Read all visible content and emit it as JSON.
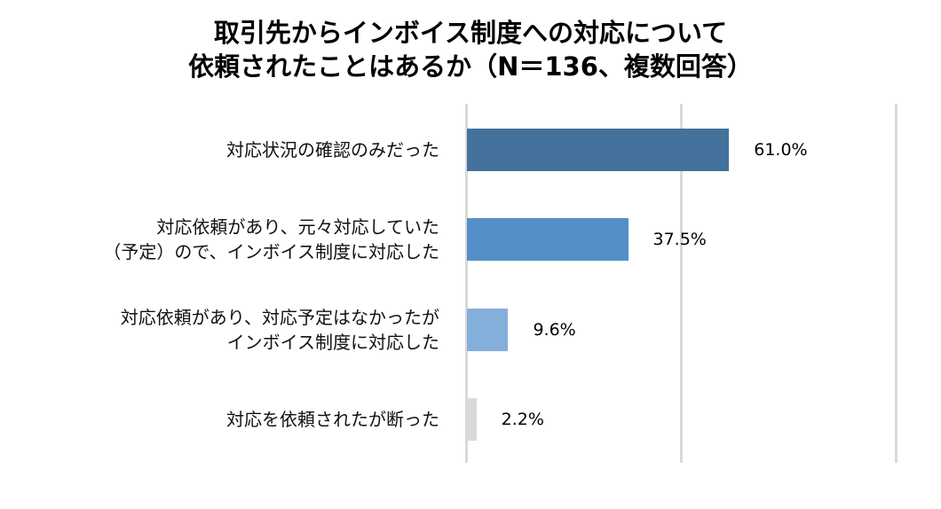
{
  "title": {
    "line1": "取引先からインボイス制度への対応について",
    "line2": "依頼されたことはあるか（N＝136、複数回答）"
  },
  "categories": [
    {
      "label_lines": [
        "対応状況の確認のみだった"
      ],
      "value": 61.0,
      "value_label": "61.0%",
      "color": "#44719b"
    },
    {
      "label_lines": [
        "対応依頼があり、元々対応していた",
        "（予定）ので、インボイス制度に対応した"
      ],
      "value": 37.5,
      "value_label": "37.5%",
      "color": "#538fc6"
    },
    {
      "label_lines": [
        "対応依頼があり、対応予定はなかったが",
        "インボイス制度に対応した"
      ],
      "value": 9.6,
      "value_label": "9.6%",
      "color": "#84afdb"
    },
    {
      "label_lines": [
        "対応を依頼されたが断った"
      ],
      "value": 2.2,
      "value_label": "2.2%",
      "color": "#d9d9d9"
    }
  ],
  "chart_data": {
    "type": "bar",
    "orientation": "horizontal",
    "title": "取引先からインボイス制度への対応について依頼されたことはあるか（N＝136、複数回答）",
    "categories": [
      "対応状況の確認のみだった",
      "対応依頼があり、元々対応していた（予定）ので、インボイス制度に対応した",
      "対応依頼があり、対応予定はなかったがインボイス制度に対応した",
      "対応を依頼されたが断った"
    ],
    "values": [
      61.0,
      37.5,
      9.6,
      2.2
    ],
    "value_labels": [
      "61.0%",
      "37.5%",
      "9.6%",
      "2.2%"
    ],
    "unit": "%",
    "xlabel": "",
    "ylabel": "",
    "xlim": [
      0,
      100
    ],
    "gridlines_at": [
      0,
      50,
      100
    ],
    "grid": true,
    "legend": "none",
    "colors": [
      "#44719b",
      "#538fc6",
      "#84afdb",
      "#d9d9d9"
    ]
  }
}
